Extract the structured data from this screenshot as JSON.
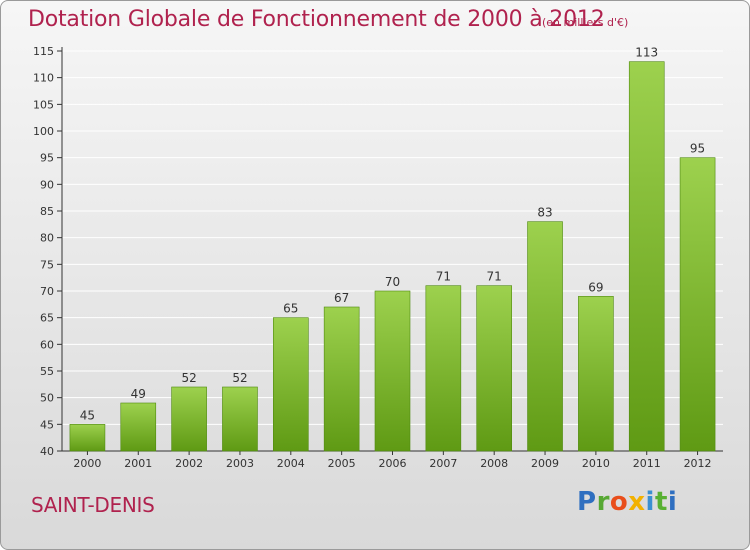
{
  "header": {
    "title": "Dotation Globale de Fonctionnement de 2000 à 2012",
    "subtitle": "(en milliers d'€)"
  },
  "footer": {
    "commune": "SAINT-DENIS",
    "logo_text": "Proxiti"
  },
  "colors": {
    "title": "#b0224e",
    "bar_top": "#9dd14e",
    "bar_bottom": "#5f9a14",
    "grid": "#ffffff"
  },
  "chart_data": {
    "type": "bar",
    "title": "Dotation Globale de Fonctionnement de 2000 à 2012",
    "subtitle": "(en milliers d'€)",
    "xlabel": "",
    "ylabel": "",
    "categories": [
      "2000",
      "2001",
      "2002",
      "2003",
      "2004",
      "2005",
      "2006",
      "2007",
      "2008",
      "2009",
      "2010",
      "2011",
      "2012"
    ],
    "values": [
      45,
      49,
      52,
      52,
      65,
      67,
      70,
      71,
      71,
      83,
      69,
      113,
      95
    ],
    "ylim": [
      40,
      115
    ],
    "yticks": [
      40,
      45,
      50,
      55,
      60,
      65,
      70,
      75,
      80,
      85,
      90,
      95,
      100,
      105,
      110,
      115
    ],
    "grid": true,
    "data_labels": true,
    "legend": "none"
  }
}
